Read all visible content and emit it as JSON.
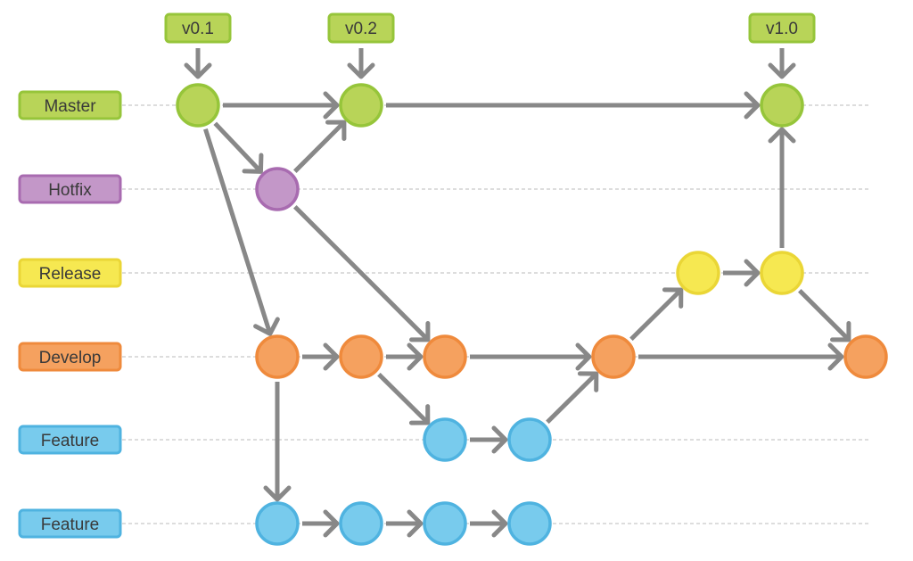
{
  "colors": {
    "arrow": "#888888",
    "guide": "#bbbbbb"
  },
  "branches": [
    {
      "id": "master",
      "label": "Master",
      "fill": "#b8d458",
      "stroke": "#96c53a"
    },
    {
      "id": "hotfix",
      "label": "Hotfix",
      "fill": "#c397c8",
      "stroke": "#a86bb0"
    },
    {
      "id": "release",
      "label": "Release",
      "fill": "#f6e851",
      "stroke": "#ead636"
    },
    {
      "id": "develop",
      "label": "Develop",
      "fill": "#f5a15f",
      "stroke": "#ef8a3c"
    },
    {
      "id": "feature1",
      "label": "Feature",
      "fill": "#78cbed",
      "stroke": "#4fb3e0"
    },
    {
      "id": "feature2",
      "label": "Feature",
      "fill": "#78cbed",
      "stroke": "#4fb3e0"
    }
  ],
  "commits": [
    {
      "id": "m0",
      "branch": "master",
      "col": 0
    },
    {
      "id": "m1",
      "branch": "master",
      "col": 2
    },
    {
      "id": "m2",
      "branch": "master",
      "col": 7
    },
    {
      "id": "h0",
      "branch": "hotfix",
      "col": 1
    },
    {
      "id": "r0",
      "branch": "release",
      "col": 6
    },
    {
      "id": "r1",
      "branch": "release",
      "col": 7
    },
    {
      "id": "d0",
      "branch": "develop",
      "col": 1
    },
    {
      "id": "d1",
      "branch": "develop",
      "col": 2
    },
    {
      "id": "d2",
      "branch": "develop",
      "col": 3
    },
    {
      "id": "d3",
      "branch": "develop",
      "col": 5
    },
    {
      "id": "d4",
      "branch": "develop",
      "col": 8
    },
    {
      "id": "fa0",
      "branch": "feature1",
      "col": 3
    },
    {
      "id": "fa1",
      "branch": "feature1",
      "col": 4
    },
    {
      "id": "fb0",
      "branch": "feature2",
      "col": 1
    },
    {
      "id": "fb1",
      "branch": "feature2",
      "col": 2
    },
    {
      "id": "fb2",
      "branch": "feature2",
      "col": 3
    },
    {
      "id": "fb3",
      "branch": "feature2",
      "col": 4
    }
  ],
  "edges": [
    [
      "m0",
      "m1"
    ],
    [
      "m0",
      "h0"
    ],
    [
      "m0",
      "d0"
    ],
    [
      "h0",
      "m1"
    ],
    [
      "h0",
      "d2"
    ],
    [
      "m1",
      "m2"
    ],
    [
      "d0",
      "d1"
    ],
    [
      "d1",
      "d2"
    ],
    [
      "d1",
      "fa0"
    ],
    [
      "d0",
      "fb0"
    ],
    [
      "fa0",
      "fa1"
    ],
    [
      "fa1",
      "d3"
    ],
    [
      "d2",
      "d3"
    ],
    [
      "d3",
      "r0"
    ],
    [
      "d3",
      "d4"
    ],
    [
      "r0",
      "r1"
    ],
    [
      "r1",
      "m2"
    ],
    [
      "r1",
      "d4"
    ],
    [
      "fb0",
      "fb1"
    ],
    [
      "fb1",
      "fb2"
    ],
    [
      "fb2",
      "fb3"
    ]
  ],
  "tags": [
    {
      "label": "v0.1",
      "commit": "m0"
    },
    {
      "label": "v0.2",
      "commit": "m1"
    },
    {
      "label": "v1.0",
      "commit": "m2"
    }
  ]
}
